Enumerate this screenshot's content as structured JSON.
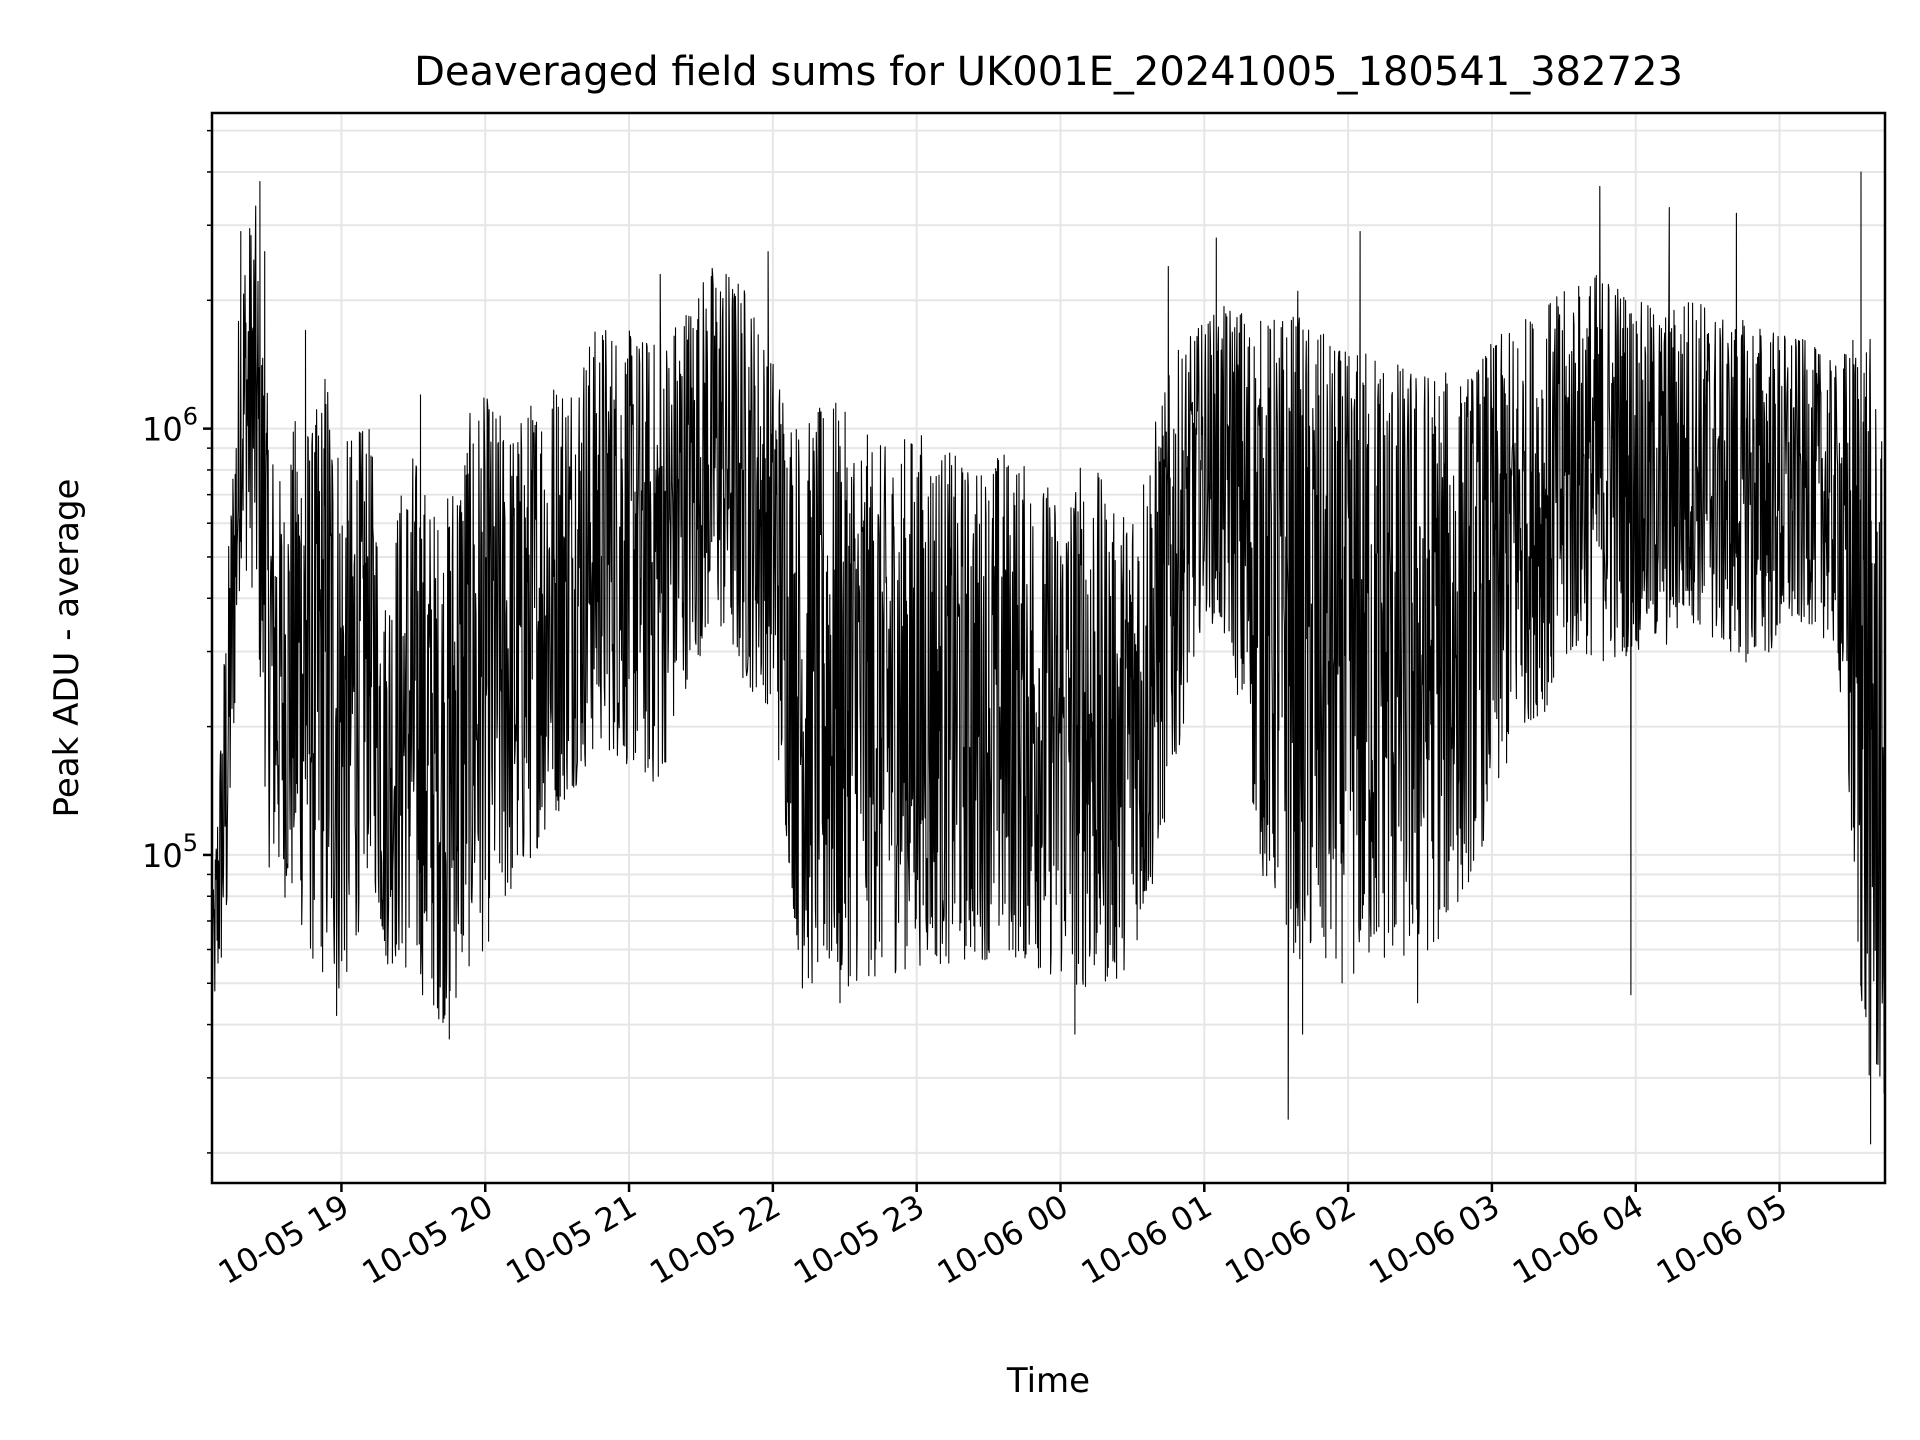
{
  "chart_data": {
    "type": "line",
    "title": "Deaveraged field sums for UK001E_20241005_180541_382723",
    "xlabel": "Time",
    "ylabel": "Peak ADU - average",
    "yscale": "log",
    "ylim": [
      17000,
      5500000
    ],
    "xlim": [
      "2024-10-05 18:06",
      "2024-10-06 05:44"
    ],
    "grid": true,
    "x_ticks": [
      {
        "value": "2024-10-05 19:00",
        "label": "10-05 19"
      },
      {
        "value": "2024-10-05 20:00",
        "label": "10-05 20"
      },
      {
        "value": "2024-10-05 21:00",
        "label": "10-05 21"
      },
      {
        "value": "2024-10-05 22:00",
        "label": "10-05 22"
      },
      {
        "value": "2024-10-05 23:00",
        "label": "10-05 23"
      },
      {
        "value": "2024-10-06 00:00",
        "label": "10-06 00"
      },
      {
        "value": "2024-10-06 01:00",
        "label": "10-06 01"
      },
      {
        "value": "2024-10-06 02:00",
        "label": "10-06 02"
      },
      {
        "value": "2024-10-06 03:00",
        "label": "10-06 03"
      },
      {
        "value": "2024-10-06 04:00",
        "label": "10-06 04"
      },
      {
        "value": "2024-10-06 05:00",
        "label": "10-06 05"
      }
    ],
    "y_ticks": [
      {
        "value": 100000,
        "base": "10",
        "exp": "5"
      },
      {
        "value": 1000000,
        "base": "10",
        "exp": "6"
      }
    ],
    "series": [
      {
        "color": "#000000",
        "envelope": {
          "x": [
            "2024-10-05 18:06",
            "2024-10-05 18:12",
            "2024-10-05 18:18",
            "2024-10-05 18:24",
            "2024-10-05 18:30",
            "2024-10-05 18:36",
            "2024-10-05 18:42",
            "2024-10-05 18:48",
            "2024-10-05 18:54",
            "2024-10-05 19:00",
            "2024-10-05 19:06",
            "2024-10-05 19:12",
            "2024-10-05 19:18",
            "2024-10-05 19:24",
            "2024-10-05 19:30",
            "2024-10-05 19:36",
            "2024-10-05 19:42",
            "2024-10-05 19:48",
            "2024-10-05 19:54",
            "2024-10-05 20:00",
            "2024-10-05 20:12",
            "2024-10-05 20:24",
            "2024-10-05 20:36",
            "2024-10-05 20:48",
            "2024-10-05 21:00",
            "2024-10-05 21:12",
            "2024-10-05 21:24",
            "2024-10-05 21:36",
            "2024-10-05 21:48",
            "2024-10-05 22:00",
            "2024-10-05 22:12",
            "2024-10-05 22:24",
            "2024-10-05 22:36",
            "2024-10-05 22:48",
            "2024-10-05 23:00",
            "2024-10-05 23:12",
            "2024-10-05 23:24",
            "2024-10-05 23:36",
            "2024-10-05 23:48",
            "2024-10-06 00:00",
            "2024-10-06 00:12",
            "2024-10-06 00:24",
            "2024-10-06 00:36",
            "2024-10-06 00:48",
            "2024-10-06 01:00",
            "2024-10-06 01:12",
            "2024-10-06 01:24",
            "2024-10-06 01:36",
            "2024-10-06 01:48",
            "2024-10-06 02:00",
            "2024-10-06 02:12",
            "2024-10-06 02:24",
            "2024-10-06 02:36",
            "2024-10-06 02:48",
            "2024-10-06 03:00",
            "2024-10-06 03:12",
            "2024-10-06 03:24",
            "2024-10-06 03:36",
            "2024-10-06 03:48",
            "2024-10-06 04:00",
            "2024-10-06 04:12",
            "2024-10-06 04:24",
            "2024-10-06 04:36",
            "2024-10-06 04:48",
            "2024-10-06 05:00",
            "2024-10-06 05:12",
            "2024-10-06 05:24",
            "2024-10-06 05:36",
            "2024-10-06 05:44"
          ],
          "low": [
            40000,
            60000,
            500000,
            400000,
            90000,
            80000,
            70000,
            55000,
            50000,
            45000,
            60000,
            100000,
            55000,
            55000,
            50000,
            45000,
            40000,
            45000,
            55000,
            60000,
            80000,
            110000,
            140000,
            180000,
            160000,
            140000,
            250000,
            350000,
            250000,
            220000,
            48000,
            48000,
            50000,
            52000,
            55000,
            55000,
            56000,
            58000,
            55000,
            50000,
            48000,
            50000,
            70000,
            160000,
            380000,
            280000,
            90000,
            60000,
            50000,
            50000,
            55000,
            55000,
            60000,
            80000,
            120000,
            200000,
            220000,
            300000,
            280000,
            300000,
            300000,
            350000,
            300000,
            280000,
            300000,
            350000,
            300000,
            30000,
            25000
          ],
          "high": [
            70000,
            400000,
            2500000,
            3500000,
            1000000,
            700000,
            1200000,
            1000000,
            1500000,
            900000,
            1000000,
            1000000,
            400000,
            700000,
            900000,
            700000,
            600000,
            900000,
            1100000,
            1200000,
            1000000,
            1300000,
            1400000,
            1800000,
            1700000,
            1600000,
            2000000,
            2500000,
            2200000,
            1500000,
            1000000,
            1200000,
            1000000,
            900000,
            1000000,
            900000,
            800000,
            900000,
            800000,
            700000,
            900000,
            600000,
            900000,
            1500000,
            1800000,
            2000000,
            1800000,
            1900000,
            1700000,
            1500000,
            1600000,
            1400000,
            1400000,
            1300000,
            1600000,
            1800000,
            2000000,
            2200000,
            2400000,
            2000000,
            1900000,
            2100000,
            1800000,
            1800000,
            1700000,
            1600000,
            1400000,
            2000000,
            800000
          ]
        },
        "extremes": [
          {
            "x": "2024-10-05 18:18",
            "y": 2900000
          },
          {
            "x": "2024-10-05 18:26",
            "y": 3800000
          },
          {
            "x": "2024-10-05 18:28",
            "y": 2600000
          },
          {
            "x": "2024-10-05 18:45",
            "y": 1700000
          },
          {
            "x": "2024-10-05 18:58",
            "y": 42000
          },
          {
            "x": "2024-10-05 19:33",
            "y": 1200000
          },
          {
            "x": "2024-10-05 19:45",
            "y": 37000
          },
          {
            "x": "2024-10-05 21:13",
            "y": 2300000
          },
          {
            "x": "2024-10-05 21:58",
            "y": 2600000
          },
          {
            "x": "2024-10-05 22:28",
            "y": 45000
          },
          {
            "x": "2024-10-06 00:06",
            "y": 38000
          },
          {
            "x": "2024-10-06 00:45",
            "y": 2400000
          },
          {
            "x": "2024-10-06 01:05",
            "y": 2800000
          },
          {
            "x": "2024-10-06 01:35",
            "y": 24000
          },
          {
            "x": "2024-10-06 01:39",
            "y": 2100000
          },
          {
            "x": "2024-10-06 01:41",
            "y": 38000
          },
          {
            "x": "2024-10-06 02:05",
            "y": 2900000
          },
          {
            "x": "2024-10-06 02:29",
            "y": 45000
          },
          {
            "x": "2024-10-06 03:45",
            "y": 3700000
          },
          {
            "x": "2024-10-06 03:58",
            "y": 47000
          },
          {
            "x": "2024-10-06 04:14",
            "y": 3300000
          },
          {
            "x": "2024-10-06 04:42",
            "y": 3200000
          },
          {
            "x": "2024-10-06 05:34",
            "y": 4000000
          },
          {
            "x": "2024-10-06 05:38",
            "y": 21000
          }
        ]
      }
    ]
  }
}
